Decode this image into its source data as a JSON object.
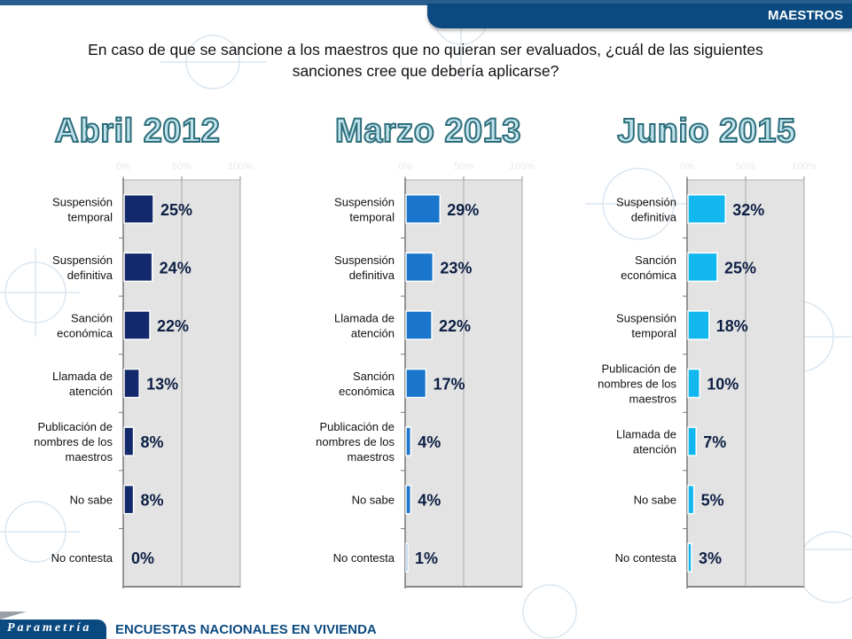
{
  "header": {
    "section_label": "MAESTROS"
  },
  "question": {
    "line1": "En caso de que se sancione a los maestros que no quieran ser evaluados, ¿cuál de las siguientes",
    "line2": "sanciones cree que debería aplicarse?"
  },
  "footer": {
    "brand": "Parametría",
    "tagline": "ENCUESTAS NACIONALES  EN VIVIENDA"
  },
  "colors": {
    "abril_2012": "#13296b",
    "marzo_2013": "#1a75cd",
    "junio_2015": "#12b7ef",
    "plot_bg": "#e3e3e3",
    "header_bg": "#0b4a80"
  },
  "chart_data": [
    {
      "type": "bar",
      "orientation": "horizontal",
      "title": "Abril 2012",
      "categories": [
        "Suspensión temporal",
        "Suspensión definitiva",
        "Sanción económica",
        "Llamada de atención",
        "Publicación de nombres de los maestros",
        "No sabe",
        "No contesta"
      ],
      "values": [
        25,
        24,
        22,
        13,
        8,
        8,
        0
      ],
      "value_labels": [
        "25%",
        "24%",
        "22%",
        "13%",
        "8%",
        "8%",
        "0%"
      ],
      "xlim": [
        0,
        100
      ],
      "xticks": [
        "0%",
        "50%",
        "100%"
      ],
      "grid": true,
      "xlabel": "",
      "ylabel": ""
    },
    {
      "type": "bar",
      "orientation": "horizontal",
      "title": "Marzo 2013",
      "categories": [
        "Suspensión temporal",
        "Suspensión definitiva",
        "Llamada de atención",
        "Sanción económica",
        "Publicación de nombres de los maestros",
        "No sabe",
        "No contesta"
      ],
      "values": [
        29,
        23,
        22,
        17,
        4,
        4,
        1
      ],
      "value_labels": [
        "29%",
        "23%",
        "22%",
        "17%",
        "4%",
        "4%",
        "1%"
      ],
      "xlim": [
        0,
        100
      ],
      "xticks": [
        "0%",
        "50%",
        "100%"
      ],
      "grid": true,
      "xlabel": "",
      "ylabel": ""
    },
    {
      "type": "bar",
      "orientation": "horizontal",
      "title": "Junio 2015",
      "categories": [
        "Suspensión definitiva",
        "Sanción económica",
        "Suspensión temporal",
        "Publicación de nombres de los maestros",
        "Llamada de atención",
        "No sabe",
        "No contesta"
      ],
      "values": [
        32,
        25,
        18,
        10,
        7,
        5,
        3
      ],
      "value_labels": [
        "32%",
        "25%",
        "18%",
        "10%",
        "7%",
        "5%",
        "3%"
      ],
      "xlim": [
        0,
        100
      ],
      "xticks": [
        "0%",
        "50%",
        "100%"
      ],
      "grid": true,
      "xlabel": "",
      "ylabel": ""
    }
  ]
}
